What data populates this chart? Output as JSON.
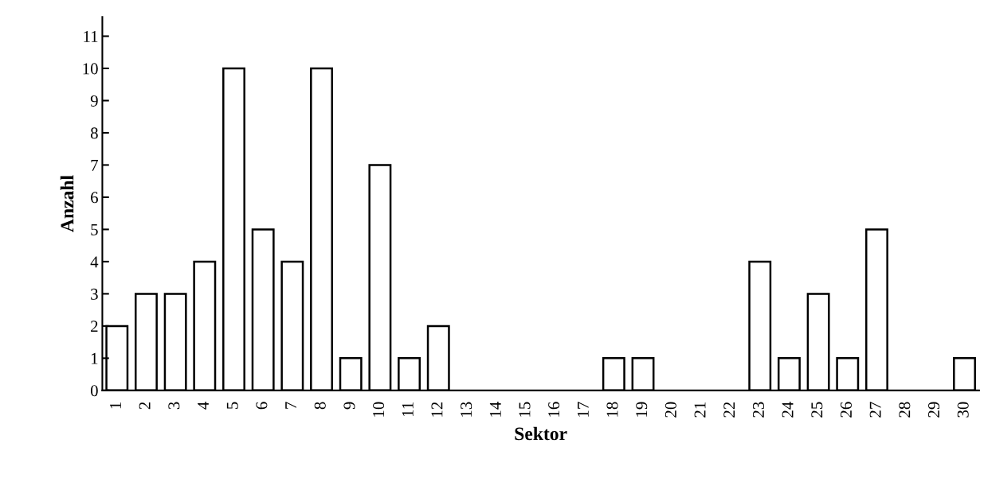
{
  "chart_data": {
    "type": "bar",
    "xlabel": "Sektor",
    "ylabel": "Anzahl",
    "categories": [
      "1",
      "2",
      "3",
      "4",
      "5",
      "6",
      "7",
      "8",
      "9",
      "10",
      "11",
      "12",
      "13",
      "14",
      "15",
      "16",
      "17",
      "18",
      "19",
      "20",
      "21",
      "22",
      "23",
      "24",
      "25",
      "26",
      "27",
      "28",
      "29",
      "30"
    ],
    "values": [
      2,
      3,
      3,
      4,
      10,
      5,
      4,
      10,
      1,
      7,
      1,
      2,
      0,
      0,
      0,
      0,
      0,
      1,
      1,
      0,
      0,
      0,
      4,
      1,
      3,
      1,
      5,
      0,
      0,
      1
    ],
    "color": "#ffffff",
    "ylim": [
      0,
      11.6
    ],
    "yticks": [
      0,
      1,
      2,
      3,
      4,
      5,
      6,
      7,
      8,
      9,
      10,
      11
    ],
    "grid": false,
    "legend": false
  }
}
